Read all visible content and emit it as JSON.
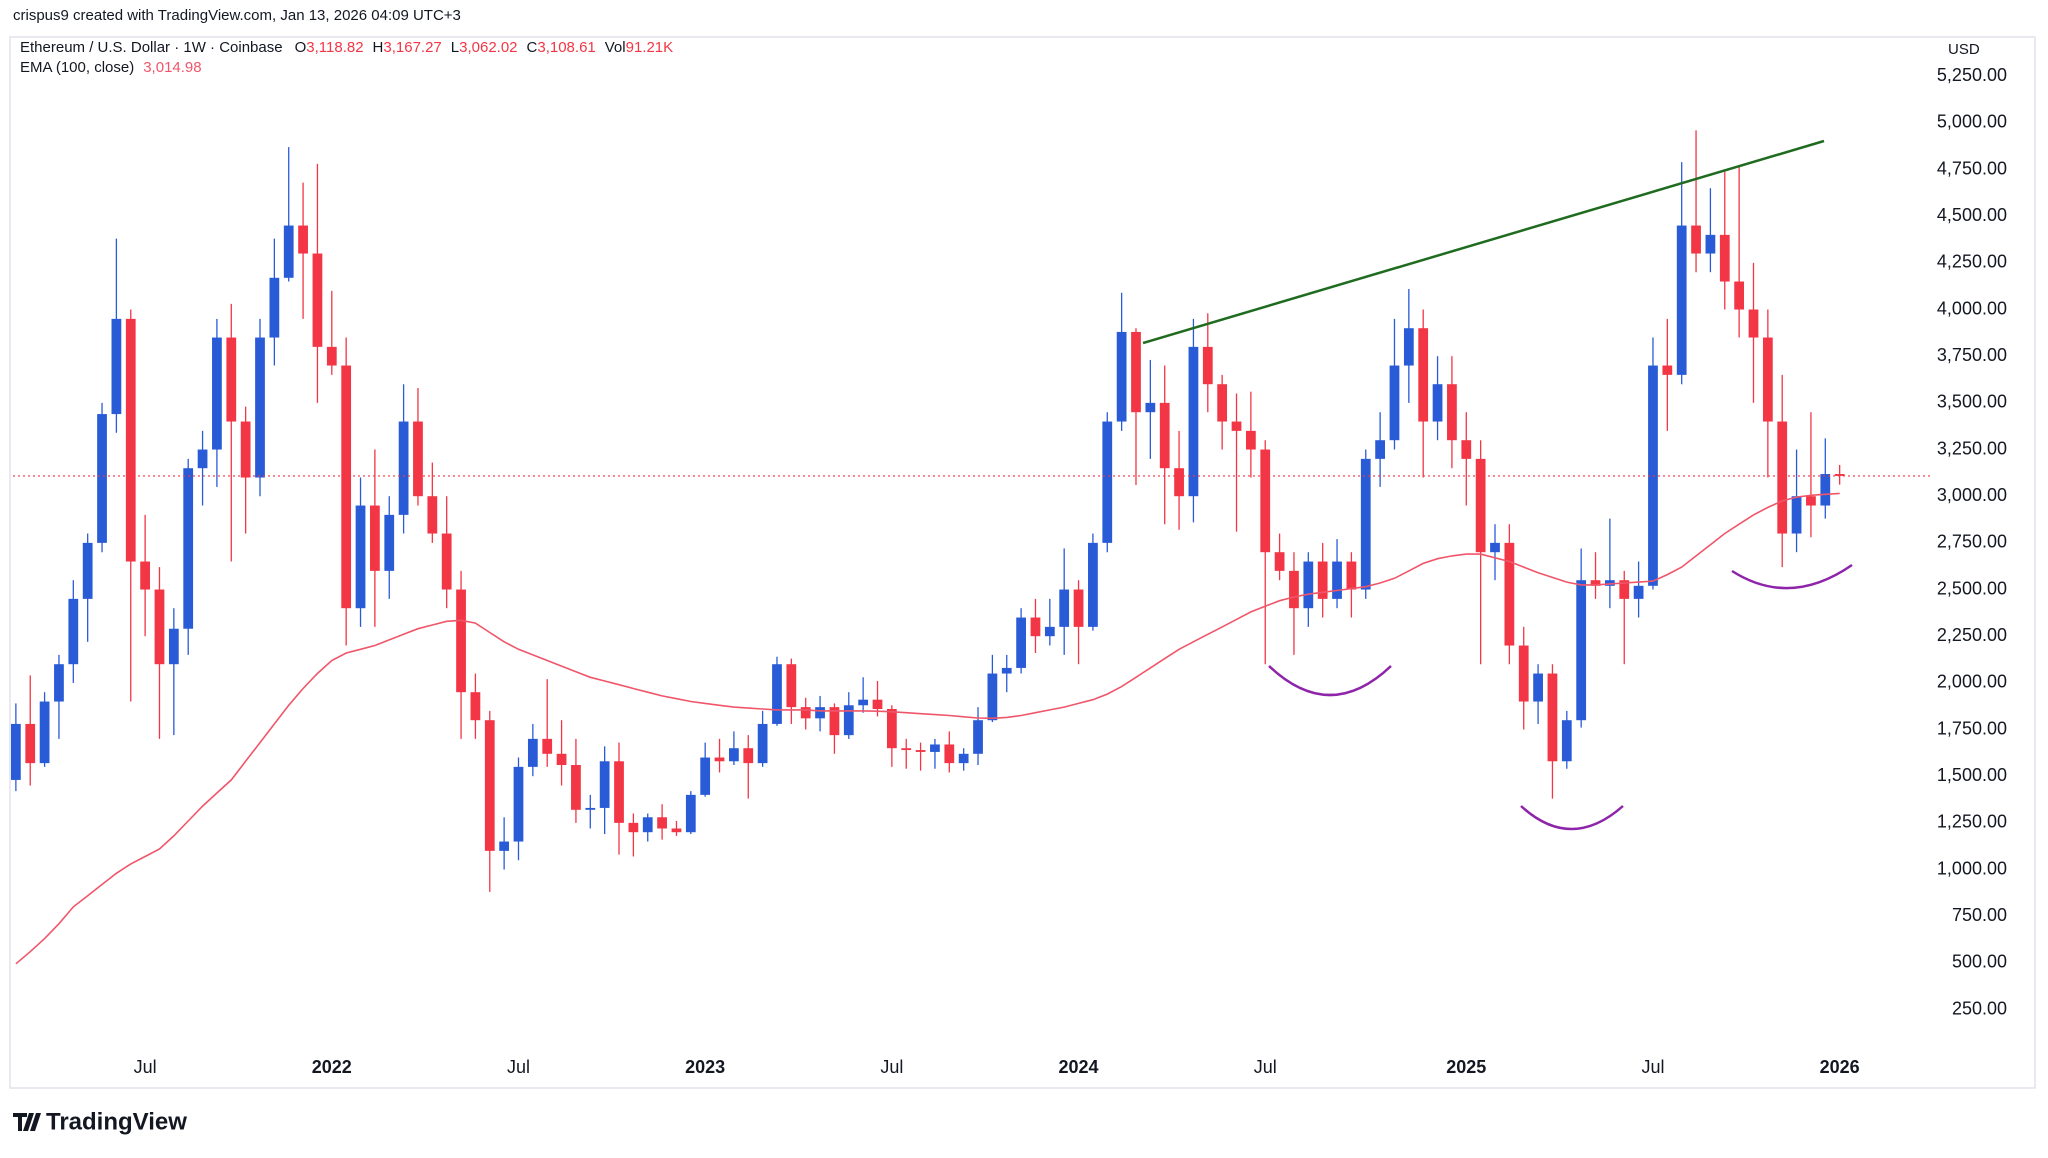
{
  "attribution": "crispus9 created with TradingView.com, Jan 13, 2026 04:09 UTC+3",
  "logo": "TradingView",
  "chart_data": {
    "type": "candlestick",
    "legend": {
      "symbol": "Ethereum / U.S. Dollar · 1W · Coinbase",
      "fields": [
        "O",
        "H",
        "L",
        "C"
      ],
      "value_labels": [
        "3,118.82",
        "3,167.27",
        "3,062.02",
        "3,108.61"
      ],
      "volume_name": "Vol",
      "volume": "91.21K"
    },
    "currency": "USD",
    "candles": {
      "up_color": "#2a5bd7",
      "down_color": "#f23645",
      "open": [
        1480,
        1780,
        1570,
        1900,
        2100,
        2450,
        2750,
        3440,
        3950,
        2650,
        2500,
        2100,
        2290,
        3150,
        3250,
        3850,
        3400,
        3100,
        3850,
        4170,
        4450,
        4300,
        3800,
        3700,
        2400,
        2950,
        2600,
        2900,
        3400,
        3000,
        2800,
        2500,
        1950,
        1800,
        1100,
        1150,
        1550,
        1700,
        1620,
        1560,
        1320,
        1330,
        1580,
        1250,
        1200,
        1280,
        1220,
        1200,
        1400,
        1600,
        1580,
        1650,
        1570,
        1780,
        2100,
        1870,
        1810,
        1870,
        1720,
        1880,
        1910,
        1860,
        1650,
        1640,
        1630,
        1670,
        1570,
        1620,
        1800,
        2050,
        2080,
        2350,
        2250,
        2300,
        2500,
        2300,
        2750,
        3400,
        3880,
        3450,
        3500,
        3150,
        3000,
        3800,
        3600,
        3400,
        3350,
        3250,
        2700,
        2600,
        2400,
        2650,
        2450,
        2650,
        2500,
        3200,
        3300,
        3700,
        3900,
        3400,
        3600,
        3300,
        3200,
        2700,
        2750,
        2200,
        1900,
        2050,
        1580,
        1800,
        2550,
        2520,
        2550,
        2450,
        2520,
        3700,
        3650,
        4450,
        4300,
        4400,
        4150,
        4000,
        3850,
        3400,
        2800,
        3000,
        2950,
        3118.82
      ],
      "high": [
        1890,
        2040,
        1950,
        2150,
        2550,
        2800,
        3500,
        4380,
        4000,
        2900,
        2620,
        2400,
        3200,
        3350,
        3950,
        4030,
        3480,
        3950,
        4380,
        4870,
        4680,
        4780,
        4100,
        3850,
        3100,
        3250,
        3000,
        3600,
        3580,
        3180,
        3000,
        2600,
        2050,
        1850,
        1280,
        1600,
        1780,
        2020,
        1800,
        1700,
        1400,
        1660,
        1680,
        1300,
        1300,
        1350,
        1260,
        1420,
        1680,
        1700,
        1740,
        1720,
        1850,
        2140,
        2130,
        1920,
        1930,
        1890,
        1950,
        2030,
        2010,
        1880,
        1700,
        1680,
        1700,
        1740,
        1650,
        1870,
        2150,
        2150,
        2400,
        2450,
        2450,
        2720,
        2550,
        2800,
        3450,
        4090,
        3900,
        3730,
        3700,
        3350,
        3950,
        3980,
        3650,
        3550,
        3560,
        3300,
        2800,
        2700,
        2700,
        2750,
        2770,
        2700,
        3250,
        3450,
        3950,
        4110,
        4000,
        3750,
        3750,
        3450,
        3300,
        2850,
        2850,
        2300,
        2100,
        2100,
        1850,
        2720,
        2700,
        2880,
        2600,
        2650,
        3850,
        3950,
        4790,
        4960,
        4650,
        4740,
        4770,
        4250,
        4000,
        3650,
        3250,
        3450,
        3310,
        3167.27
      ],
      "low": [
        1420,
        1450,
        1550,
        1700,
        2000,
        2220,
        2700,
        3340,
        1900,
        2250,
        1700,
        1720,
        2150,
        2950,
        3050,
        2650,
        2800,
        3000,
        3700,
        4150,
        3950,
        3500,
        3650,
        2200,
        2300,
        2300,
        2450,
        2800,
        2950,
        2750,
        2400,
        1700,
        1700,
        880,
        1000,
        1050,
        1500,
        1550,
        1450,
        1250,
        1220,
        1190,
        1080,
        1070,
        1150,
        1160,
        1180,
        1190,
        1390,
        1520,
        1560,
        1380,
        1550,
        1770,
        1780,
        1750,
        1740,
        1620,
        1700,
        1840,
        1820,
        1550,
        1540,
        1530,
        1540,
        1520,
        1530,
        1560,
        1790,
        1950,
        2050,
        2160,
        2200,
        2150,
        2100,
        2280,
        2700,
        3350,
        3060,
        3200,
        2850,
        2820,
        2860,
        3450,
        3250,
        2810,
        3100,
        2100,
        2550,
        2150,
        2300,
        2350,
        2400,
        2350,
        2450,
        3050,
        3250,
        3500,
        3100,
        3300,
        3150,
        2950,
        2100,
        2550,
        2100,
        1750,
        1780,
        1380,
        1540,
        1760,
        2450,
        2400,
        2100,
        2350,
        2500,
        3350,
        3600,
        4200,
        4200,
        4000,
        3850,
        3500,
        3100,
        2620,
        2700,
        2780,
        2880,
        3062.02
      ],
      "close": [
        1780,
        1570,
        1900,
        2100,
        2450,
        2750,
        3440,
        3950,
        2650,
        2500,
        2100,
        2290,
        3150,
        3250,
        3850,
        3400,
        3100,
        3850,
        4170,
        4450,
        4300,
        3800,
        3700,
        2400,
        2950,
        2600,
        2900,
        3400,
        3000,
        2800,
        2500,
        1950,
        1800,
        1100,
        1150,
        1550,
        1700,
        1620,
        1560,
        1320,
        1330,
        1580,
        1250,
        1200,
        1280,
        1220,
        1200,
        1400,
        1600,
        1580,
        1650,
        1570,
        1780,
        2100,
        1870,
        1810,
        1870,
        1720,
        1880,
        1910,
        1860,
        1650,
        1640,
        1630,
        1670,
        1570,
        1620,
        1800,
        2050,
        2080,
        2350,
        2250,
        2300,
        2500,
        2300,
        2750,
        3400,
        3880,
        3450,
        3500,
        3150,
        3000,
        3800,
        3600,
        3400,
        3350,
        3250,
        2700,
        2600,
        2400,
        2650,
        2450,
        2650,
        2500,
        3200,
        3300,
        3700,
        3900,
        3400,
        3600,
        3300,
        3200,
        2700,
        2750,
        2200,
        1900,
        2050,
        1580,
        1800,
        2550,
        2520,
        2550,
        2450,
        2520,
        3700,
        3650,
        4450,
        4300,
        4400,
        4150,
        4000,
        3850,
        3400,
        2800,
        3000,
        2950,
        3118.82,
        3108.61
      ]
    },
    "ema": {
      "name": "EMA (100, close)",
      "value_label": "3,014.98",
      "color": "#f0566a",
      "values": [
        495,
        560,
        630,
        710,
        800,
        860,
        920,
        980,
        1030,
        1070,
        1110,
        1180,
        1260,
        1340,
        1410,
        1480,
        1580,
        1680,
        1780,
        1880,
        1970,
        2050,
        2120,
        2160,
        2180,
        2200,
        2230,
        2260,
        2290,
        2310,
        2330,
        2335,
        2320,
        2270,
        2220,
        2180,
        2150,
        2120,
        2090,
        2060,
        2030,
        2010,
        1990,
        1970,
        1950,
        1930,
        1915,
        1900,
        1890,
        1880,
        1870,
        1865,
        1860,
        1855,
        1855,
        1855,
        1850,
        1850,
        1850,
        1850,
        1848,
        1845,
        1840,
        1835,
        1830,
        1825,
        1818,
        1812,
        1810,
        1815,
        1825,
        1840,
        1855,
        1870,
        1890,
        1910,
        1940,
        1980,
        2030,
        2080,
        2130,
        2180,
        2220,
        2260,
        2300,
        2340,
        2380,
        2410,
        2440,
        2460,
        2475,
        2485,
        2495,
        2505,
        2515,
        2535,
        2560,
        2600,
        2640,
        2665,
        2680,
        2690,
        2690,
        2670,
        2650,
        2620,
        2590,
        2565,
        2540,
        2525,
        2525,
        2530,
        2535,
        2540,
        2545,
        2580,
        2620,
        2680,
        2740,
        2800,
        2850,
        2900,
        2940,
        2975,
        2995,
        3005,
        3010,
        3014.98
      ]
    },
    "xlim": [
      -0.2,
      133.5
    ],
    "xticks": [
      {
        "value": 9,
        "label": "Jul"
      },
      {
        "value": 22,
        "label": "2022"
      },
      {
        "value": 35,
        "label": "Jul"
      },
      {
        "value": 48,
        "label": "2023"
      },
      {
        "value": 61,
        "label": "Jul"
      },
      {
        "value": 74,
        "label": "2024"
      },
      {
        "value": 87,
        "label": "Jul"
      },
      {
        "value": 101,
        "label": "2025"
      },
      {
        "value": 114,
        "label": "Jul"
      },
      {
        "value": 127,
        "label": "2026"
      }
    ],
    "ylim": [
      60,
      5460
    ],
    "yticks": [
      {
        "value": 250,
        "label": "250.00"
      },
      {
        "value": 500,
        "label": "500.00"
      },
      {
        "value": 750,
        "label": "750.00"
      },
      {
        "value": 1000,
        "label": "1,000.00"
      },
      {
        "value": 1250,
        "label": "1,250.00"
      },
      {
        "value": 1500,
        "label": "1,500.00"
      },
      {
        "value": 1750,
        "label": "1,750.00"
      },
      {
        "value": 2000,
        "label": "2,000.00"
      },
      {
        "value": 2250,
        "label": "2,250.00"
      },
      {
        "value": 2500,
        "label": "2,500.00"
      },
      {
        "value": 2750,
        "label": "2,750.00"
      },
      {
        "value": 3000,
        "label": "3,000.00"
      },
      {
        "value": 3250,
        "label": "3,250.00"
      },
      {
        "value": 3500,
        "label": "3,500.00"
      },
      {
        "value": 3750,
        "label": "3,750.00"
      },
      {
        "value": 4000,
        "label": "4,000.00"
      },
      {
        "value": 4250,
        "label": "4,250.00"
      },
      {
        "value": 4500,
        "label": "4,500.00"
      },
      {
        "value": 4750,
        "label": "4,750.00"
      },
      {
        "value": 5000,
        "label": "5,000.00"
      },
      {
        "value": 5250,
        "label": "5,250.00"
      }
    ],
    "grid": false
  }
}
